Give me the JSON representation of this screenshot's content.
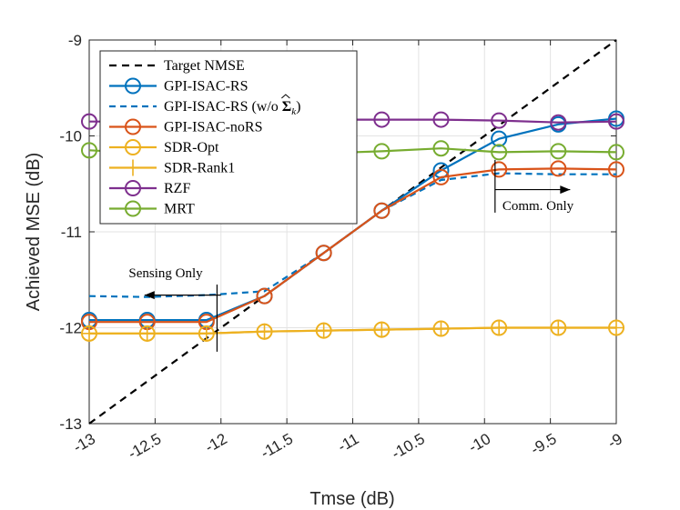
{
  "chart_data": {
    "type": "line",
    "xlabel": "Tmse (dB)",
    "ylabel": "Achieved MSE (dB)",
    "xlim": [
      -13,
      -9
    ],
    "ylim": [
      -13,
      -9
    ],
    "xticks": [
      "-13",
      "-12.5",
      "-12",
      "-11.5",
      "-11",
      "-10.5",
      "-10",
      "-9.5",
      "-9"
    ],
    "yticks": [
      "-13",
      "-12",
      "-11",
      "-10",
      "-9"
    ],
    "grid": true,
    "legend_position": "top-left",
    "series": [
      {
        "name": "Target NMSE",
        "legend_main": "Target NMSE",
        "legend_sub": "",
        "legend_tail": "",
        "color": "#000000",
        "dash": "8,6",
        "marker": "none",
        "x": [
          -13,
          -9
        ],
        "y": [
          -13,
          -9
        ]
      },
      {
        "name": "GPI-ISAC-RS",
        "legend_main": "GPI-ISAC-RS",
        "legend_sub": "",
        "legend_tail": "",
        "color": "#0072BD",
        "dash": "",
        "marker": "circle",
        "x": [
          -13,
          -12.56,
          -12.11,
          -11.67,
          -11.22,
          -10.78,
          -10.33,
          -9.89,
          -9.44,
          -9
        ],
        "y": [
          -11.92,
          -11.92,
          -11.92,
          -11.67,
          -11.22,
          -10.78,
          -10.36,
          -10.03,
          -9.88,
          -9.82
        ]
      },
      {
        "name": "GPI-ISAC-RS (w/o Σ̂k)",
        "legend_main": "GPI-ISAC-RS (w/o ",
        "legend_sub": "k",
        "legend_tail": ")",
        "color": "#0072BD",
        "dash": "7,5",
        "marker": "none",
        "x": [
          -13,
          -12.56,
          -12.11,
          -11.67,
          -11.22,
          -10.78,
          -10.33,
          -9.89,
          -9.44,
          -9
        ],
        "y": [
          -11.67,
          -11.68,
          -11.66,
          -11.62,
          -11.22,
          -10.78,
          -10.46,
          -10.39,
          -10.4,
          -10.4
        ]
      },
      {
        "name": "GPI-ISAC-noRS",
        "legend_main": "GPI-ISAC-noRS",
        "legend_sub": "",
        "legend_tail": "",
        "color": "#D95319",
        "dash": "",
        "marker": "circle",
        "x": [
          -13,
          -12.56,
          -12.11,
          -11.67,
          -11.22,
          -10.78,
          -10.33,
          -9.89,
          -9.44,
          -9
        ],
        "y": [
          -11.94,
          -11.94,
          -11.94,
          -11.67,
          -11.22,
          -10.78,
          -10.43,
          -10.35,
          -10.34,
          -10.35
        ]
      },
      {
        "name": "SDR-Opt",
        "legend_main": "SDR-Opt",
        "legend_sub": "",
        "legend_tail": "",
        "color": "#EDB120",
        "dash": "",
        "marker": "circle",
        "x": [
          -13,
          -12.56,
          -12.11,
          -11.67,
          -11.22,
          -10.78,
          -10.33,
          -9.89,
          -9.44,
          -9
        ],
        "y": [
          -12.06,
          -12.06,
          -12.06,
          -12.04,
          -12.03,
          -12.02,
          -12.01,
          -12.0,
          -12.0,
          -12.0
        ]
      },
      {
        "name": "SDR-Rank1",
        "legend_main": "SDR-Rank1",
        "legend_sub": "",
        "legend_tail": "",
        "color": "#EDB120",
        "dash": "",
        "marker": "plus",
        "x": [
          -13,
          -12.56,
          -12.11,
          -11.67,
          -11.22,
          -10.78,
          -10.33,
          -9.89,
          -9.44,
          -9
        ],
        "y": [
          -12.06,
          -12.06,
          -12.06,
          -12.04,
          -12.03,
          -12.02,
          -12.01,
          -12.0,
          -12.0,
          -12.0
        ]
      },
      {
        "name": "RZF",
        "legend_main": "RZF",
        "legend_sub": "",
        "legend_tail": "",
        "color": "#7E2F8E",
        "dash": "",
        "marker": "circle",
        "x": [
          -13,
          -12.56,
          -12.11,
          -11.67,
          -11.22,
          -10.78,
          -10.33,
          -9.89,
          -9.44,
          -9
        ],
        "y": [
          -9.85,
          -9.85,
          -9.84,
          -9.84,
          -9.83,
          -9.83,
          -9.83,
          -9.84,
          -9.86,
          -9.85
        ]
      },
      {
        "name": "MRT",
        "legend_main": "MRT",
        "legend_sub": "",
        "legend_tail": "",
        "color": "#77AC30",
        "dash": "",
        "marker": "circle",
        "x": [
          -13,
          -12.56,
          -12.11,
          -11.67,
          -11.22,
          -10.78,
          -10.33,
          -9.89,
          -9.44,
          -9
        ],
        "y": [
          -10.15,
          -10.18,
          -10.2,
          -10.19,
          -10.18,
          -10.16,
          -10.13,
          -10.17,
          -10.16,
          -10.17
        ]
      }
    ],
    "annotations": [
      {
        "text": "Sensing Only",
        "vline_x": -12.03,
        "vline_y": [
          -11.55,
          -12.25
        ],
        "arrow_from": [
          -12.0,
          -11.66
        ],
        "arrow_to": [
          -12.58,
          -11.66
        ]
      },
      {
        "text": "Comm. Only",
        "vline_x": -9.92,
        "vline_y": [
          -10.25,
          -10.8
        ],
        "arrow_from": [
          -9.92,
          -10.56
        ],
        "arrow_to": [
          -9.35,
          -10.56
        ]
      }
    ]
  }
}
